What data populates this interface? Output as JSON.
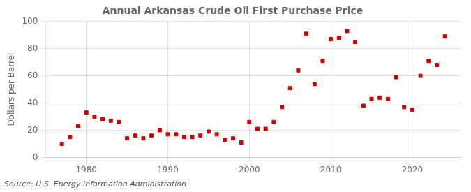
{
  "chart_data": {
    "type": "scatter",
    "title": "Annual Arkansas Crude Oil First Purchase Price",
    "ylabel": "Dollars per Barrel",
    "annotation": "Source: U.S. Energy Information Administration",
    "x": [
      1977,
      1978,
      1979,
      1980,
      1981,
      1982,
      1983,
      1984,
      1985,
      1986,
      1987,
      1988,
      1989,
      1990,
      1991,
      1992,
      1993,
      1994,
      1995,
      1996,
      1997,
      1998,
      1999,
      2000,
      2001,
      2002,
      2003,
      2004,
      2005,
      2006,
      2007,
      2008,
      2009,
      2010,
      2011,
      2012,
      2013,
      2014,
      2015,
      2016,
      2017,
      2018,
      2019,
      2020,
      2021,
      2022,
      2023,
      2024
    ],
    "values": [
      10,
      15,
      23,
      33,
      30,
      28,
      27,
      26,
      14,
      16,
      14,
      16,
      20,
      17,
      17,
      15,
      15,
      16,
      19,
      17,
      13,
      14,
      11,
      26,
      21,
      21,
      26,
      37,
      51,
      64,
      91,
      54,
      71,
      87,
      88,
      93,
      85,
      38,
      43,
      44,
      43,
      59,
      37,
      35,
      60,
      71,
      68,
      89
    ],
    "color": "#cc0000",
    "marker": "square",
    "xlim": [
      1975,
      2026
    ],
    "xticks": [
      1980,
      1990,
      2000,
      2010,
      2020
    ],
    "ylim": [
      0,
      100
    ],
    "yticks": [
      0,
      20,
      40,
      60,
      80,
      100
    ],
    "grid": true
  }
}
